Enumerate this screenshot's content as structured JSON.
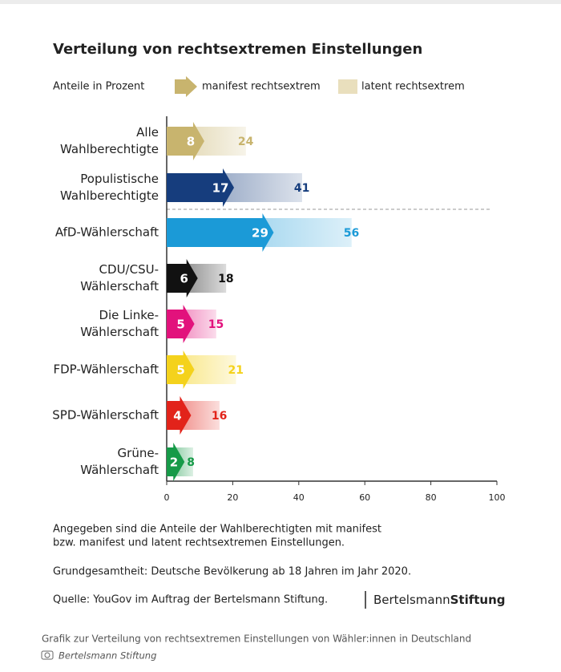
{
  "chart_data": {
    "type": "arrow_bar",
    "title": "Verteilung von rechtsextremen Einstellungen",
    "legend_title": "Anteile in Prozent",
    "categories": [
      [
        "Alle",
        "Wahlberechtigte"
      ],
      [
        "Populistische",
        "Wahlberechtigte"
      ],
      [
        "AfD-Wählerschaft"
      ],
      [
        "CDU/CSU-",
        "Wählerschaft"
      ],
      [
        "Die Linke-",
        "Wählerschaft"
      ],
      [
        "FDP-Wählerschaft"
      ],
      [
        "SPD-Wählerschaft"
      ],
      [
        "Grüne-",
        "Wählerschaft"
      ]
    ],
    "category_colors": [
      "#c8b46e",
      "#163d7d",
      "#1b9ad7",
      "#111111",
      "#e2127c",
      "#f4d21c",
      "#e2231a",
      "#169a48"
    ],
    "series": [
      {
        "name": "manifest rechtsextrem",
        "color": "#c8b46e",
        "values": [
          8,
          17,
          29,
          6,
          5,
          5,
          4,
          2
        ]
      },
      {
        "name": "latent rechtsextrem",
        "color": "#e9dfbd",
        "values": [
          24,
          41,
          56,
          18,
          15,
          21,
          16,
          8
        ]
      }
    ],
    "xlim": [
      0,
      100
    ],
    "xticks": [
      0,
      20,
      40,
      60,
      80,
      100
    ],
    "notes": [
      [
        "Angegeben sind die Anteile der Wahlberechtigten mit manifest",
        "bzw. manifest und latent rechtsextremen Einstellungen."
      ],
      [
        "Grundgesamtheit: Deutsche Bevölkerung ab 18 Jahren im Jahr 2020."
      ],
      [
        "Quelle: YouGov im Auftrag der Bertelsmann Stiftung."
      ]
    ],
    "logo": [
      "Bertelsmann",
      "Stiftung"
    ],
    "caption": "Grafik zur Verteilung von rechtsextremen Einstellungen von Wähler:innen in Deutschland",
    "credit": "Bertelsmann Stiftung"
  }
}
